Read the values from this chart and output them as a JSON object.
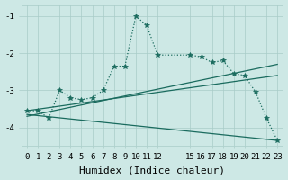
{
  "bg_color": "#cde8e5",
  "grid_color": "#a8ccc8",
  "line_color": "#1a6b5e",
  "xlabel": "Humidex (Indice chaleur)",
  "ylim": [
    -4.5,
    -0.7
  ],
  "xlim": [
    -0.5,
    23.5
  ],
  "yticks": [
    -4,
    -3,
    -2,
    -1
  ],
  "ytick_labels": [
    "-4",
    "-3",
    "-2",
    "-1"
  ],
  "xticks": [
    0,
    1,
    2,
    3,
    4,
    5,
    6,
    7,
    8,
    9,
    10,
    11,
    12,
    15,
    16,
    17,
    18,
    19,
    20,
    21,
    22,
    23
  ],
  "curve_x": [
    0,
    1,
    2,
    3,
    4,
    5,
    6,
    7,
    8,
    9,
    10,
    11,
    12,
    15,
    16,
    17,
    18,
    19,
    20,
    21,
    22,
    23
  ],
  "curve_y": [
    -3.55,
    -3.55,
    -3.75,
    -3.0,
    -3.2,
    -3.25,
    -3.2,
    -3.0,
    -2.35,
    -2.35,
    -1.0,
    -1.25,
    -2.05,
    -2.05,
    -2.1,
    -2.25,
    -2.2,
    -2.55,
    -2.6,
    -3.05,
    -3.75,
    -4.35
  ],
  "line1_x": [
    0,
    23
  ],
  "line1_y": [
    -3.55,
    -2.6
  ],
  "line2_x": [
    0,
    23
  ],
  "line2_y": [
    -3.65,
    -4.35
  ],
  "line3_x": [
    0,
    23
  ],
  "line3_y": [
    -3.7,
    -2.3
  ],
  "marker": "*",
  "markersize": 4,
  "linewidth": 0.9,
  "fontsize_xlabel": 8,
  "fontsize_ticks": 6.5
}
